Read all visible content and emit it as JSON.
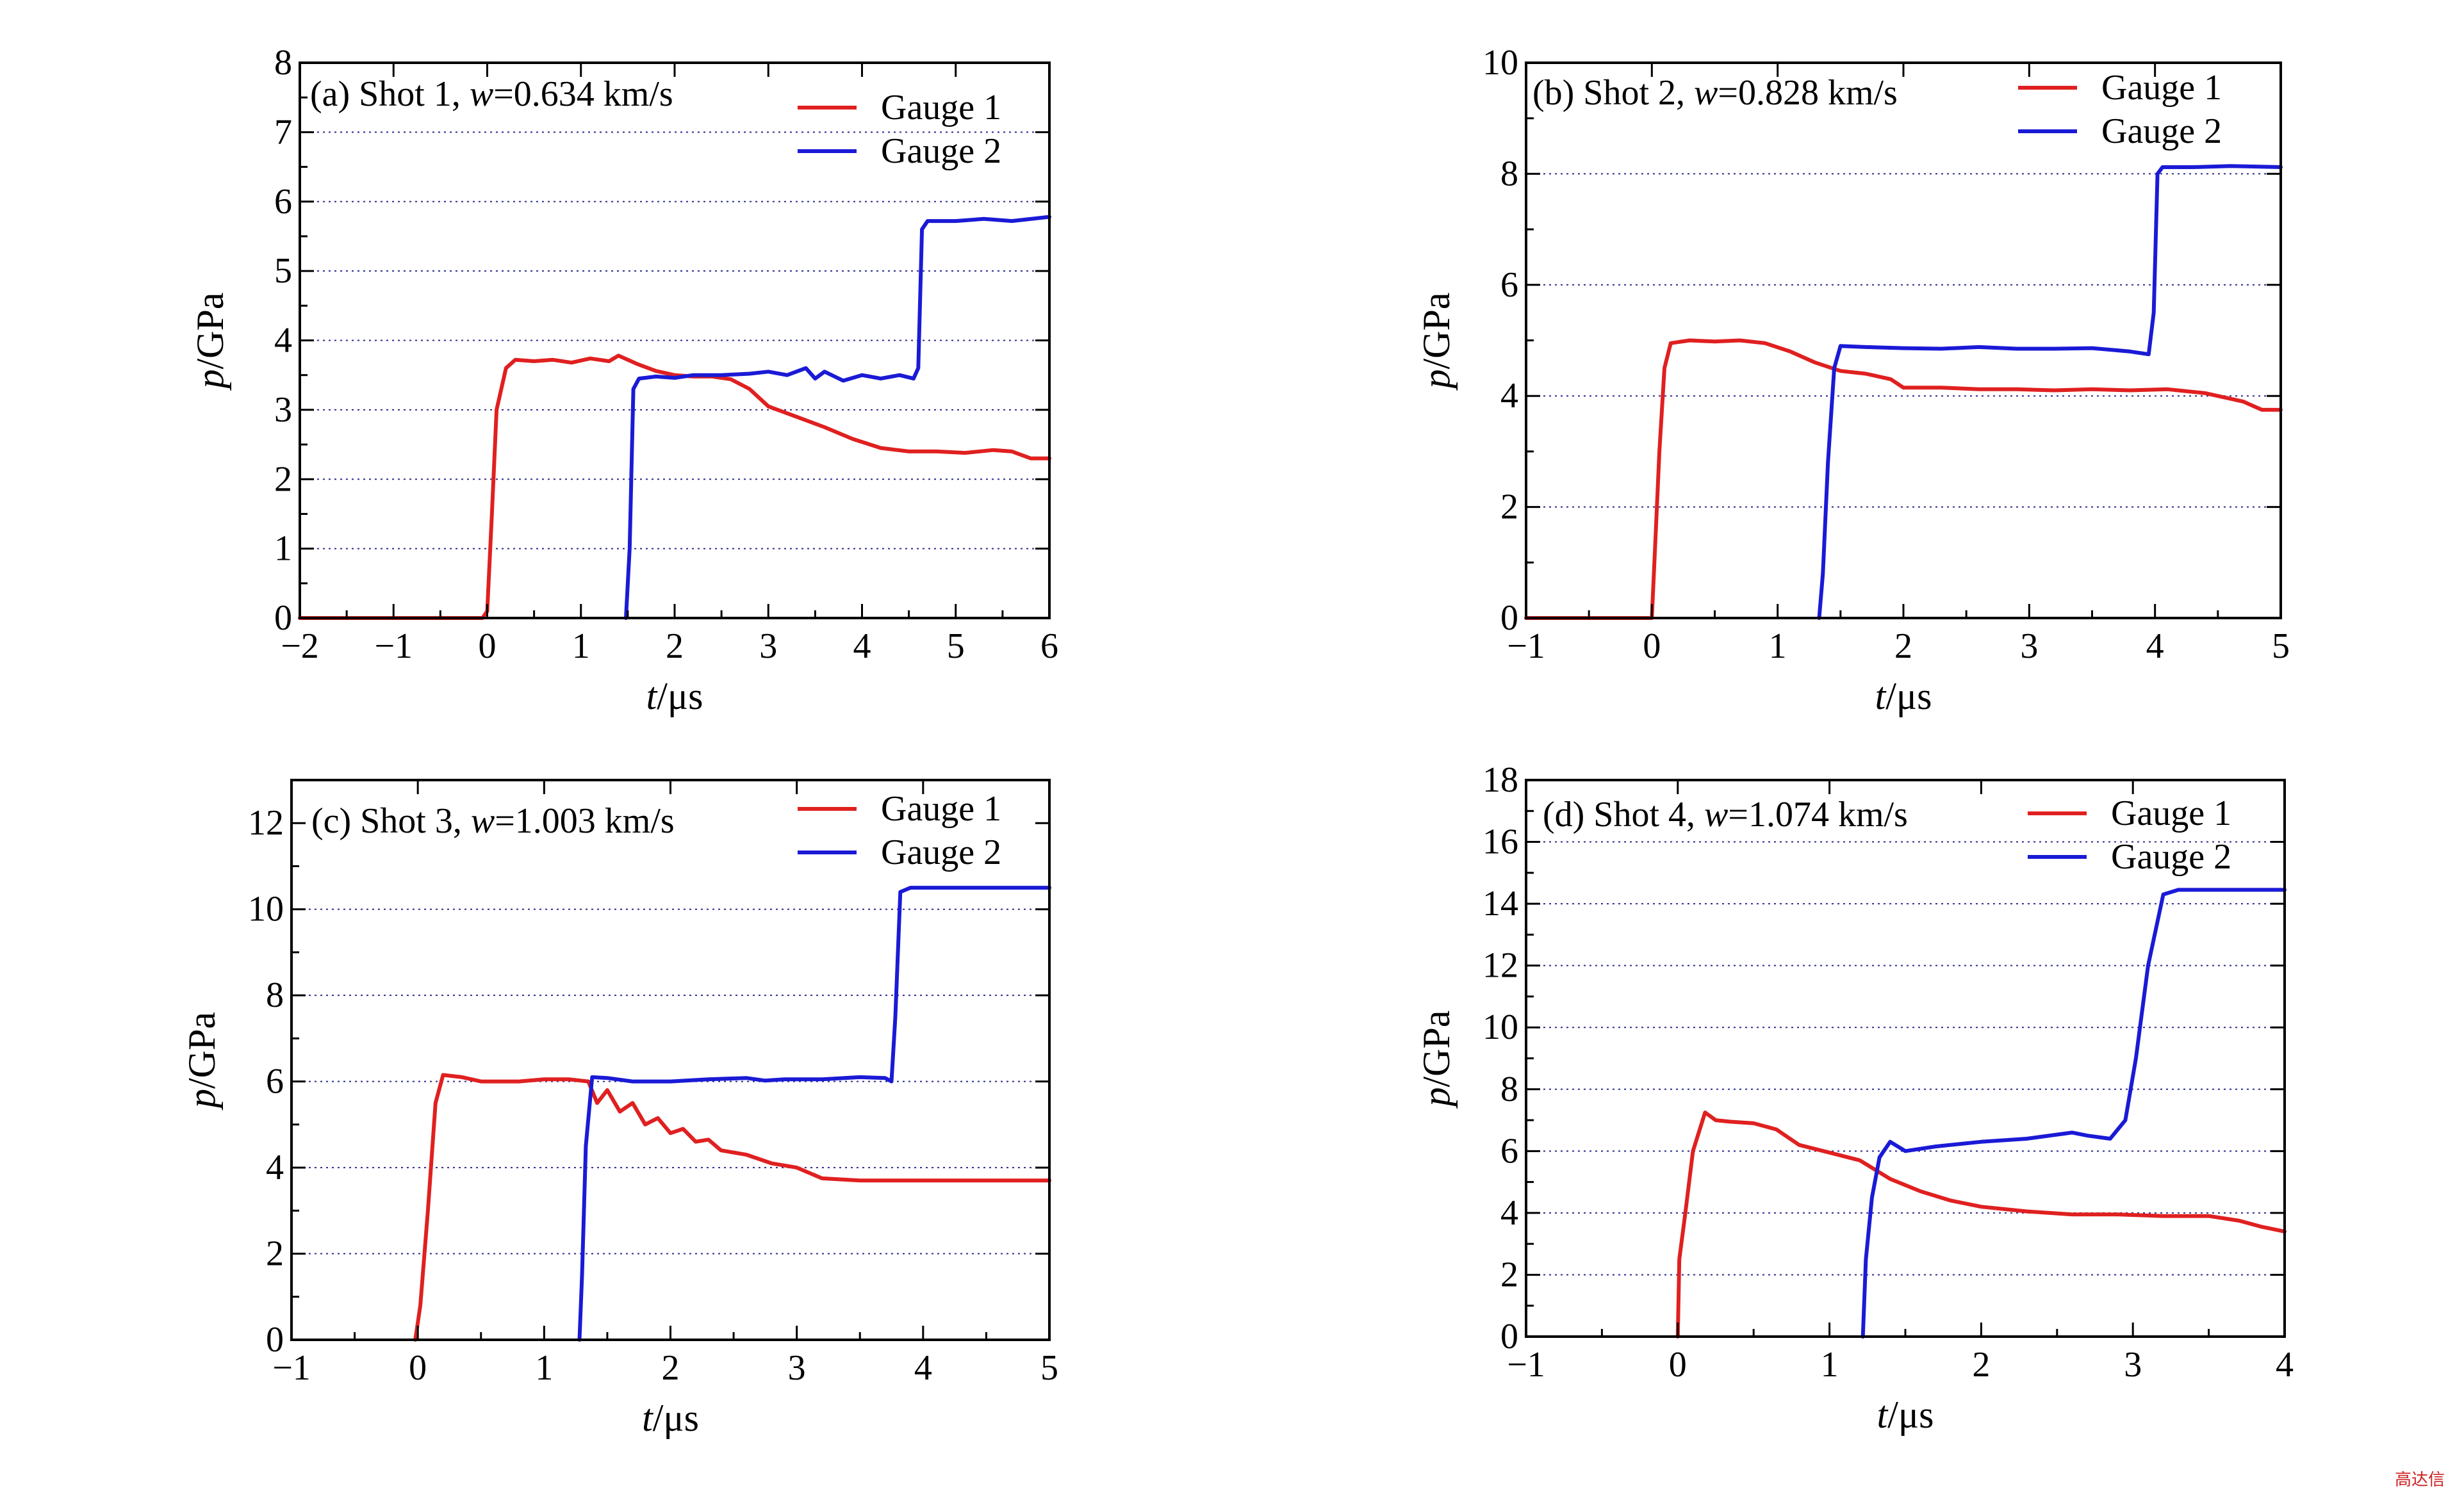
{
  "watermark_text": "高达信",
  "colors": {
    "gauge1": "#e02020",
    "gauge2": "#1a1ad6",
    "grid": "#2b2b8f"
  },
  "chart_data": [
    {
      "type": "line",
      "panel": "a",
      "title_prefix": "(a) Shot 1, ",
      "title_var": "w",
      "title_suffix": "=0.634 km/s",
      "xlabel_var": "t",
      "xlabel_unit": "/μs",
      "ylabel_var": "p",
      "ylabel_unit": "/GPa",
      "xlim": [
        -2,
        6
      ],
      "ylim": [
        0,
        8
      ],
      "xticks": [
        -2,
        -1,
        0,
        1,
        2,
        3,
        4,
        5,
        6
      ],
      "xtick_labels": [
        "−2",
        "−1",
        "0",
        "1",
        "2",
        "3",
        "4",
        "5",
        "6"
      ],
      "yticks": [
        0,
        1,
        2,
        3,
        4,
        5,
        6,
        7,
        8
      ],
      "ytick_labels": [
        "0",
        "1",
        "2",
        "3",
        "4",
        "5",
        "6",
        "7",
        "8"
      ],
      "grid_y": [
        1,
        2,
        3,
        4,
        5,
        6,
        7
      ],
      "legend": "top-right",
      "series": [
        {
          "name": "Gauge 1",
          "color": "#e02020",
          "points": [
            [
              -2,
              0
            ],
            [
              -0.05,
              0
            ],
            [
              0,
              0.1
            ],
            [
              0.05,
              1.5
            ],
            [
              0.1,
              3.0
            ],
            [
              0.2,
              3.6
            ],
            [
              0.3,
              3.72
            ],
            [
              0.5,
              3.7
            ],
            [
              0.7,
              3.72
            ],
            [
              0.9,
              3.68
            ],
            [
              1.1,
              3.74
            ],
            [
              1.3,
              3.7
            ],
            [
              1.4,
              3.78
            ],
            [
              1.6,
              3.66
            ],
            [
              1.8,
              3.56
            ],
            [
              2.0,
              3.5
            ],
            [
              2.2,
              3.48
            ],
            [
              2.4,
              3.48
            ],
            [
              2.6,
              3.44
            ],
            [
              2.8,
              3.3
            ],
            [
              3.0,
              3.05
            ],
            [
              3.3,
              2.9
            ],
            [
              3.6,
              2.75
            ],
            [
              3.9,
              2.58
            ],
            [
              4.2,
              2.45
            ],
            [
              4.5,
              2.4
            ],
            [
              4.8,
              2.4
            ],
            [
              5.1,
              2.38
            ],
            [
              5.4,
              2.42
            ],
            [
              5.6,
              2.4
            ],
            [
              5.8,
              2.3
            ],
            [
              6.0,
              2.3
            ]
          ]
        },
        {
          "name": "Gauge 2",
          "color": "#1a1ad6",
          "points": [
            [
              1.48,
              0
            ],
            [
              1.52,
              1.0
            ],
            [
              1.56,
              3.3
            ],
            [
              1.62,
              3.45
            ],
            [
              1.8,
              3.48
            ],
            [
              2.0,
              3.46
            ],
            [
              2.2,
              3.5
            ],
            [
              2.5,
              3.5
            ],
            [
              2.8,
              3.52
            ],
            [
              3.0,
              3.55
            ],
            [
              3.2,
              3.5
            ],
            [
              3.4,
              3.6
            ],
            [
              3.5,
              3.45
            ],
            [
              3.6,
              3.55
            ],
            [
              3.8,
              3.42
            ],
            [
              4.0,
              3.5
            ],
            [
              4.2,
              3.45
            ],
            [
              4.4,
              3.5
            ],
            [
              4.55,
              3.45
            ],
            [
              4.6,
              3.6
            ],
            [
              4.64,
              5.6
            ],
            [
              4.7,
              5.72
            ],
            [
              5.0,
              5.72
            ],
            [
              5.3,
              5.75
            ],
            [
              5.6,
              5.72
            ],
            [
              6.0,
              5.78
            ]
          ]
        }
      ]
    },
    {
      "type": "line",
      "panel": "b",
      "title_prefix": "(b) Shot 2, ",
      "title_var": "w",
      "title_suffix": "=0.828 km/s",
      "xlabel_var": "t",
      "xlabel_unit": "/μs",
      "ylabel_var": "p",
      "ylabel_unit": "/GPa",
      "xlim": [
        -1,
        5
      ],
      "ylim": [
        0,
        10
      ],
      "xticks": [
        -1,
        0,
        1,
        2,
        3,
        4,
        5
      ],
      "xtick_labels": [
        "−1",
        "0",
        "1",
        "2",
        "3",
        "4",
        "5"
      ],
      "yticks": [
        0,
        2,
        4,
        6,
        8,
        10
      ],
      "ytick_labels": [
        "0",
        "2",
        "4",
        "6",
        "8",
        "10"
      ],
      "grid_y": [
        2,
        4,
        6,
        8
      ],
      "legend": "top-right",
      "series": [
        {
          "name": "Gauge 1",
          "color": "#e02020",
          "points": [
            [
              -1,
              0
            ],
            [
              0,
              0
            ],
            [
              0.02,
              1.0
            ],
            [
              0.06,
              3.0
            ],
            [
              0.1,
              4.5
            ],
            [
              0.15,
              4.95
            ],
            [
              0.3,
              5.0
            ],
            [
              0.5,
              4.98
            ],
            [
              0.7,
              5.0
            ],
            [
              0.9,
              4.95
            ],
            [
              1.1,
              4.8
            ],
            [
              1.3,
              4.6
            ],
            [
              1.5,
              4.45
            ],
            [
              1.7,
              4.4
            ],
            [
              1.9,
              4.3
            ],
            [
              2.0,
              4.15
            ],
            [
              2.3,
              4.15
            ],
            [
              2.6,
              4.12
            ],
            [
              2.9,
              4.12
            ],
            [
              3.2,
              4.1
            ],
            [
              3.5,
              4.12
            ],
            [
              3.8,
              4.1
            ],
            [
              4.1,
              4.12
            ],
            [
              4.4,
              4.05
            ],
            [
              4.7,
              3.9
            ],
            [
              4.85,
              3.75
            ],
            [
              5.0,
              3.75
            ]
          ]
        },
        {
          "name": "Gauge 2",
          "color": "#1a1ad6",
          "points": [
            [
              1.33,
              0
            ],
            [
              1.36,
              0.8
            ],
            [
              1.4,
              2.8
            ],
            [
              1.45,
              4.5
            ],
            [
              1.5,
              4.9
            ],
            [
              1.7,
              4.88
            ],
            [
              2.0,
              4.86
            ],
            [
              2.3,
              4.85
            ],
            [
              2.6,
              4.88
            ],
            [
              2.9,
              4.85
            ],
            [
              3.2,
              4.85
            ],
            [
              3.5,
              4.86
            ],
            [
              3.8,
              4.8
            ],
            [
              3.95,
              4.75
            ],
            [
              3.99,
              5.5
            ],
            [
              4.02,
              8.0
            ],
            [
              4.06,
              8.12
            ],
            [
              4.3,
              8.12
            ],
            [
              4.6,
              8.14
            ],
            [
              5.0,
              8.12
            ]
          ]
        }
      ]
    },
    {
      "type": "line",
      "panel": "c",
      "title_prefix": "(c) Shot 3, ",
      "title_var": "w",
      "title_suffix": "=1.003 km/s",
      "xlabel_var": "t",
      "xlabel_unit": "/μs",
      "ylabel_var": "p",
      "ylabel_unit": "/GPa",
      "xlim": [
        -1,
        5
      ],
      "ylim": [
        0,
        13
      ],
      "xticks": [
        -1,
        0,
        1,
        2,
        3,
        4,
        5
      ],
      "xtick_labels": [
        "−1",
        "0",
        "1",
        "2",
        "3",
        "4",
        "5"
      ],
      "yticks": [
        0,
        2,
        4,
        6,
        8,
        10,
        12
      ],
      "ytick_labels": [
        "0",
        "2",
        "4",
        "6",
        "8",
        "10",
        "12"
      ],
      "grid_y": [
        2,
        4,
        6,
        8,
        10
      ],
      "legend": "top-right",
      "series": [
        {
          "name": "Gauge 1",
          "color": "#e02020",
          "points": [
            [
              -0.02,
              0
            ],
            [
              0.02,
              0.8
            ],
            [
              0.08,
              3.0
            ],
            [
              0.14,
              5.5
            ],
            [
              0.2,
              6.15
            ],
            [
              0.35,
              6.1
            ],
            [
              0.5,
              6.0
            ],
            [
              0.8,
              6.0
            ],
            [
              1.0,
              6.05
            ],
            [
              1.2,
              6.05
            ],
            [
              1.35,
              6.0
            ],
            [
              1.42,
              5.5
            ],
            [
              1.5,
              5.8
            ],
            [
              1.6,
              5.3
            ],
            [
              1.7,
              5.5
            ],
            [
              1.8,
              5.0
            ],
            [
              1.9,
              5.15
            ],
            [
              2.0,
              4.8
            ],
            [
              2.1,
              4.9
            ],
            [
              2.2,
              4.6
            ],
            [
              2.3,
              4.65
            ],
            [
              2.4,
              4.4
            ],
            [
              2.6,
              4.3
            ],
            [
              2.8,
              4.1
            ],
            [
              3.0,
              4.0
            ],
            [
              3.2,
              3.75
            ],
            [
              3.5,
              3.7
            ],
            [
              4.0,
              3.7
            ],
            [
              4.5,
              3.7
            ],
            [
              5.0,
              3.7
            ]
          ]
        },
        {
          "name": "Gauge 2",
          "color": "#1a1ad6",
          "points": [
            [
              1.28,
              0
            ],
            [
              1.3,
              1.5
            ],
            [
              1.33,
              4.5
            ],
            [
              1.38,
              6.1
            ],
            [
              1.5,
              6.08
            ],
            [
              1.7,
              6.0
            ],
            [
              2.0,
              6.0
            ],
            [
              2.3,
              6.05
            ],
            [
              2.6,
              6.08
            ],
            [
              2.75,
              6.02
            ],
            [
              2.9,
              6.05
            ],
            [
              3.2,
              6.05
            ],
            [
              3.5,
              6.1
            ],
            [
              3.7,
              6.08
            ],
            [
              3.75,
              6.0
            ],
            [
              3.78,
              7.5
            ],
            [
              3.82,
              10.4
            ],
            [
              3.9,
              10.5
            ],
            [
              4.3,
              10.5
            ],
            [
              4.7,
              10.5
            ],
            [
              5.0,
              10.5
            ]
          ]
        }
      ]
    },
    {
      "type": "line",
      "panel": "d",
      "title_prefix": "(d) Shot 4, ",
      "title_var": "w",
      "title_suffix": "=1.074 km/s",
      "xlabel_var": "t",
      "xlabel_unit": "/μs",
      "ylabel_var": "p",
      "ylabel_unit": "/GPa",
      "xlim": [
        -1,
        4
      ],
      "ylim": [
        0,
        18
      ],
      "xticks": [
        -1,
        0,
        1,
        2,
        3,
        4
      ],
      "xtick_labels": [
        "−1",
        "0",
        "1",
        "2",
        "3",
        "4"
      ],
      "yticks": [
        0,
        2,
        4,
        6,
        8,
        10,
        12,
        14,
        16,
        18
      ],
      "ytick_labels": [
        "0",
        "2",
        "4",
        "6",
        "8",
        "10",
        "12",
        "14",
        "16",
        "18"
      ],
      "grid_y": [
        2,
        4,
        6,
        8,
        10,
        12,
        14,
        16
      ],
      "legend": "top-right",
      "series": [
        {
          "name": "Gauge 1",
          "color": "#e02020",
          "points": [
            [
              0,
              0
            ],
            [
              0.01,
              2.5
            ],
            [
              0.05,
              4.0
            ],
            [
              0.1,
              6.0
            ],
            [
              0.18,
              7.25
            ],
            [
              0.25,
              7.0
            ],
            [
              0.35,
              6.95
            ],
            [
              0.5,
              6.9
            ],
            [
              0.65,
              6.7
            ],
            [
              0.8,
              6.2
            ],
            [
              1.0,
              5.95
            ],
            [
              1.2,
              5.7
            ],
            [
              1.4,
              5.1
            ],
            [
              1.6,
              4.7
            ],
            [
              1.8,
              4.4
            ],
            [
              2.0,
              4.2
            ],
            [
              2.3,
              4.05
            ],
            [
              2.6,
              3.95
            ],
            [
              2.9,
              3.95
            ],
            [
              3.2,
              3.9
            ],
            [
              3.5,
              3.9
            ],
            [
              3.7,
              3.75
            ],
            [
              3.85,
              3.55
            ],
            [
              4.0,
              3.4
            ]
          ]
        },
        {
          "name": "Gauge 2",
          "color": "#1a1ad6",
          "points": [
            [
              1.22,
              0
            ],
            [
              1.24,
              2.5
            ],
            [
              1.28,
              4.5
            ],
            [
              1.33,
              5.8
            ],
            [
              1.4,
              6.3
            ],
            [
              1.5,
              6.0
            ],
            [
              1.7,
              6.15
            ],
            [
              2.0,
              6.3
            ],
            [
              2.3,
              6.4
            ],
            [
              2.6,
              6.6
            ],
            [
              2.7,
              6.5
            ],
            [
              2.85,
              6.4
            ],
            [
              2.95,
              7.0
            ],
            [
              3.02,
              9.0
            ],
            [
              3.1,
              12.0
            ],
            [
              3.2,
              14.3
            ],
            [
              3.3,
              14.45
            ],
            [
              3.6,
              14.45
            ],
            [
              4.0,
              14.45
            ]
          ]
        }
      ]
    }
  ]
}
